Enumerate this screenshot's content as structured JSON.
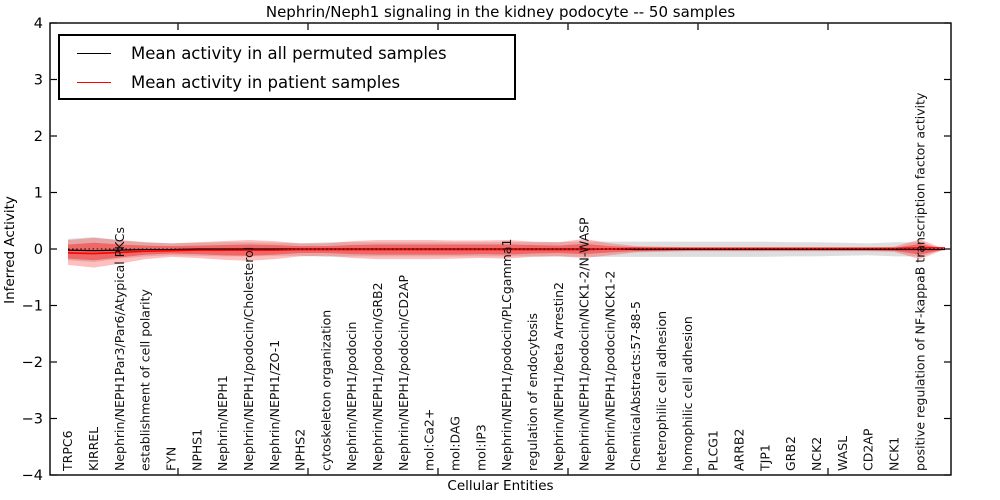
{
  "chart_data": {
    "type": "line",
    "title": "Nephrin/Neph1 signaling in the kidney podocyte -- 50 samples",
    "xlabel": "Cellular Entities",
    "ylabel": "Inferred Activity",
    "ylim": [
      -4,
      4
    ],
    "yticks": [
      4,
      3,
      2,
      1,
      0,
      -1,
      -2,
      -3,
      -4
    ],
    "grid": false,
    "legend_position": "upper left",
    "categories": [
      "TRPC6",
      "KIRREL",
      "Nephrin/NEPH1Par3/Par6/Atypical PKCs",
      "establishment of cell polarity",
      "FYN",
      "NPHS1",
      "Nephrin/NEPH1",
      "Nephrin/NEPH1/podocin/Cholesterol",
      "Nephrin/NEPH1/ZO-1",
      "NPHS2",
      "cytoskeleton organization",
      "Nephrin/NEPH1/podocin",
      "Nephrin/NEPH1/podocin/GRB2",
      "Nephrin/NEPH1/podocin/CD2AP",
      "mol:Ca2+",
      "mol:DAG",
      "mol:IP3",
      "Nephrin/NEPH1/podocin/PLCgamma1",
      "regulation of endocytosis",
      "Nephrin/NEPH1/beta Arrestin2",
      "Nephrin/NEPH1/podocin/NCK1-2/N-WASP",
      "Nephrin/NEPH1/podocin/NCK1-2",
      "ChemicalAbstracts:57-88-5",
      "heterophilic cell adhesion",
      "homophilic cell adhesion",
      "PLCG1",
      "ARRB2",
      "TJP1",
      "GRB2",
      "NCK2",
      "WASL",
      "CD2AP",
      "NCK1",
      "positive regulation of NF-kappaB transcription factor activity"
    ],
    "series": [
      {
        "name": "Mean activity in all permuted samples",
        "color": "#000000",
        "values": [
          -0.02,
          -0.03,
          -0.02,
          -0.01,
          -0.01,
          0,
          0,
          0,
          0,
          0,
          0,
          0,
          0,
          0,
          0,
          0,
          0,
          0,
          0,
          0,
          0,
          0,
          -0.01,
          -0.01,
          -0.01,
          -0.01,
          -0.01,
          -0.01,
          -0.01,
          -0.01,
          -0.01,
          -0.01,
          -0.01,
          -0.01
        ],
        "band": {
          "color": "rgba(0,0,0,0.13)",
          "hi": [
            0.18,
            0.21,
            0.15,
            0.12,
            0.1,
            0.11,
            0.12,
            0.12,
            0.11,
            0.1,
            0.12,
            0.12,
            0.12,
            0.12,
            0.12,
            0.12,
            0.12,
            0.12,
            0.12,
            0.12,
            0.13,
            0.13,
            0.13,
            0.13,
            0.13,
            0.13,
            0.13,
            0.13,
            0.12,
            0.12,
            0.11,
            0.1,
            0.12,
            0.12
          ],
          "lo": [
            -0.2,
            -0.23,
            -0.17,
            -0.13,
            -0.11,
            -0.12,
            -0.13,
            -0.13,
            -0.12,
            -0.12,
            -0.14,
            -0.13,
            -0.13,
            -0.13,
            -0.13,
            -0.13,
            -0.13,
            -0.13,
            -0.13,
            -0.13,
            -0.14,
            -0.14,
            -0.14,
            -0.14,
            -0.14,
            -0.14,
            -0.14,
            -0.14,
            -0.13,
            -0.13,
            -0.12,
            -0.11,
            -0.13,
            -0.13
          ]
        }
      },
      {
        "name": "Mean activity in patient samples",
        "color": "#ff0000",
        "values": [
          -0.07,
          -0.08,
          -0.06,
          -0.04,
          -0.03,
          -0.02,
          -0.02,
          -0.02,
          -0.02,
          -0.01,
          -0.01,
          -0.01,
          -0.01,
          -0.01,
          -0.01,
          -0.01,
          -0.01,
          -0.01,
          -0.01,
          -0.01,
          -0.01,
          0,
          0.01,
          0.01,
          0.01,
          0.01,
          0.01,
          0.01,
          0.01,
          0.01,
          0.01,
          0.01,
          0.01,
          0.02
        ],
        "band_outer": {
          "color": "rgba(255,0,0,0.25)",
          "hi": [
            0.16,
            0.2,
            0.16,
            0.12,
            0.1,
            0.12,
            0.14,
            0.16,
            0.14,
            0.1,
            0.1,
            0.14,
            0.16,
            0.16,
            0.16,
            0.15,
            0.15,
            0.16,
            0.13,
            0.12,
            0.18,
            0.1,
            0.05,
            0.04,
            0.03,
            0.03,
            0.03,
            0.03,
            0.03,
            0.03,
            0.03,
            0.03,
            0.04,
            0.17
          ],
          "lo": [
            -0.28,
            -0.33,
            -0.26,
            -0.18,
            -0.14,
            -0.16,
            -0.19,
            -0.21,
            -0.18,
            -0.13,
            -0.12,
            -0.16,
            -0.18,
            -0.18,
            -0.18,
            -0.17,
            -0.16,
            -0.17,
            -0.14,
            -0.13,
            -0.16,
            -0.11,
            -0.06,
            -0.05,
            -0.04,
            -0.04,
            -0.04,
            -0.04,
            -0.04,
            -0.04,
            -0.04,
            -0.04,
            -0.05,
            -0.18
          ]
        },
        "band_inner": {
          "color": "rgba(255,0,0,0.38)",
          "hi": [
            0.08,
            0.11,
            0.08,
            0.06,
            0.05,
            0.06,
            0.07,
            0.08,
            0.07,
            0.05,
            0.05,
            0.07,
            0.08,
            0.08,
            0.08,
            0.08,
            0.08,
            0.08,
            0.07,
            0.06,
            0.09,
            0.05,
            0.03,
            0.02,
            0.02,
            0.02,
            0.02,
            0.02,
            0.02,
            0.02,
            0.02,
            0.02,
            0.02,
            0.09
          ],
          "lo": [
            -0.17,
            -0.2,
            -0.15,
            -0.1,
            -0.08,
            -0.09,
            -0.11,
            -0.12,
            -0.1,
            -0.07,
            -0.07,
            -0.09,
            -0.1,
            -0.1,
            -0.1,
            -0.1,
            -0.09,
            -0.1,
            -0.08,
            -0.07,
            -0.09,
            -0.06,
            -0.04,
            -0.03,
            -0.02,
            -0.02,
            -0.02,
            -0.02,
            -0.02,
            -0.02,
            -0.02,
            -0.02,
            -0.03,
            -0.1
          ]
        }
      }
    ],
    "zero_line": {
      "y": 0,
      "style": "dotted",
      "color": "#000000"
    }
  }
}
